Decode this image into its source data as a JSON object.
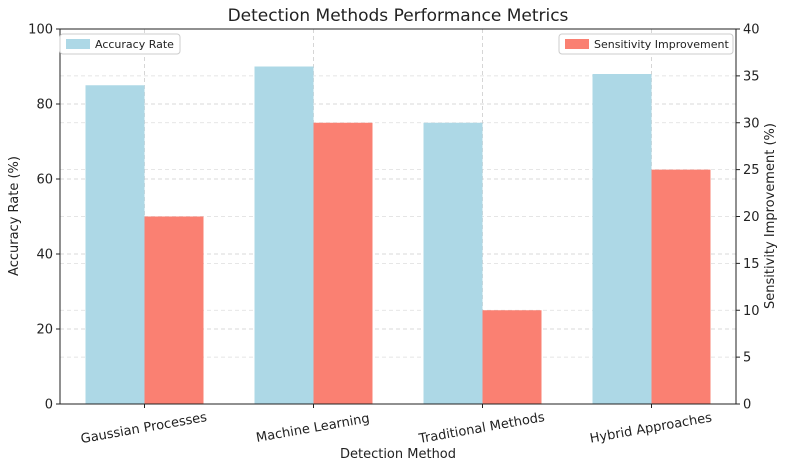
{
  "chart_data": {
    "type": "bar",
    "title": "Detection Methods Performance Metrics",
    "xlabel": "Detection Method",
    "ylabel_left": "Accuracy Rate (%)",
    "ylabel_right": "Sensitivity Improvement (%)",
    "categories": [
      "Gaussian Processes",
      "Machine Learning",
      "Traditional Methods",
      "Hybrid Approaches"
    ],
    "series": [
      {
        "name": "Accuracy Rate",
        "axis": "left",
        "color": "#add8e6",
        "values": [
          85,
          90,
          75,
          88
        ]
      },
      {
        "name": "Sensitivity Improvement",
        "axis": "right",
        "color": "#fa8072",
        "values": [
          20,
          30,
          10,
          25
        ]
      }
    ],
    "ylim_left": [
      0,
      100
    ],
    "ylim_right": [
      0,
      40
    ],
    "yticks_left": [
      "0",
      "20",
      "40",
      "60",
      "80",
      "100"
    ],
    "yticks_right": [
      "0",
      "5",
      "10",
      "15",
      "20",
      "25",
      "30",
      "35",
      "40"
    ],
    "grid": true,
    "legend_left_placement": "top-left",
    "legend_right_placement": "top-right"
  }
}
